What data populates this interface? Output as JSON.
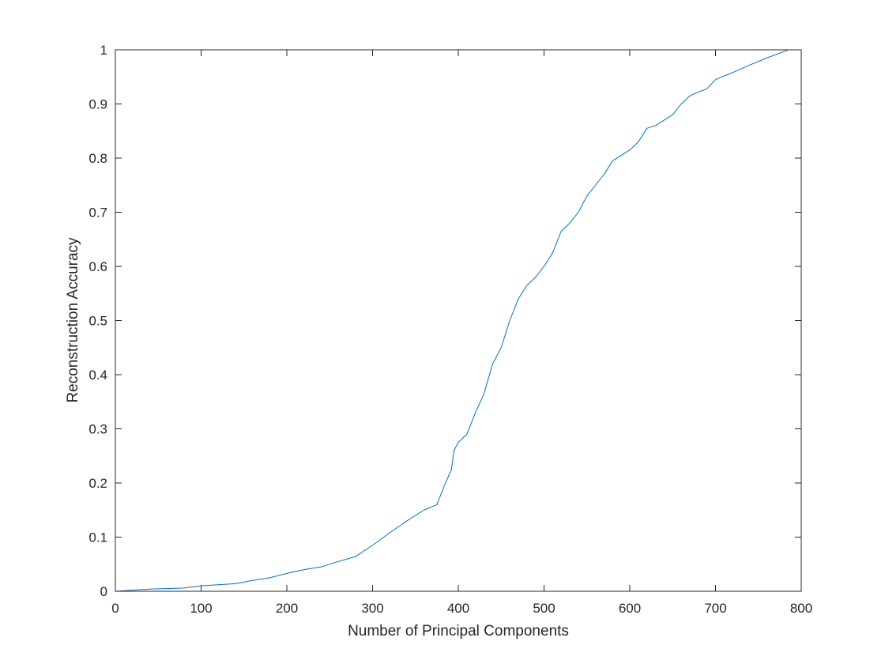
{
  "chart_data": {
    "type": "line",
    "title": "",
    "xlabel": "Number of Principal Components",
    "ylabel": "Reconstruction Accuracy",
    "xlim": [
      0,
      800
    ],
    "ylim": [
      0,
      1
    ],
    "grid": false,
    "legend": "none",
    "xticks": [
      "0",
      "100",
      "200",
      "300",
      "400",
      "500",
      "600",
      "700",
      "800"
    ],
    "yticks": [
      "0",
      "0.1",
      "0.2",
      "0.3",
      "0.4",
      "0.5",
      "0.6",
      "0.7",
      "0.8",
      "0.9",
      "1"
    ],
    "series": [
      {
        "color": "#0072bd",
        "x": [
          0,
          20,
          40,
          60,
          80,
          100,
          120,
          140,
          160,
          180,
          200,
          220,
          240,
          260,
          280,
          300,
          320,
          340,
          360,
          375,
          385,
          392,
          395,
          400,
          410,
          420,
          430,
          440,
          450,
          460,
          470,
          480,
          490,
          500,
          510,
          520,
          530,
          540,
          550,
          560,
          570,
          580,
          590,
          600,
          610,
          620,
          630,
          640,
          650,
          660,
          670,
          680,
          690,
          700,
          720,
          740,
          760,
          780,
          785
        ],
        "y": [
          0,
          0.002,
          0.004,
          0.005,
          0.006,
          0.01,
          0.012,
          0.014,
          0.02,
          0.025,
          0.033,
          0.04,
          0.045,
          0.055,
          0.064,
          0.085,
          0.108,
          0.13,
          0.15,
          0.16,
          0.2,
          0.225,
          0.26,
          0.275,
          0.29,
          0.33,
          0.365,
          0.42,
          0.45,
          0.5,
          0.54,
          0.565,
          0.58,
          0.6,
          0.625,
          0.665,
          0.68,
          0.7,
          0.73,
          0.75,
          0.77,
          0.795,
          0.805,
          0.815,
          0.83,
          0.855,
          0.86,
          0.87,
          0.88,
          0.9,
          0.915,
          0.922,
          0.928,
          0.945,
          0.958,
          0.972,
          0.985,
          0.997,
          1.0
        ]
      }
    ]
  }
}
